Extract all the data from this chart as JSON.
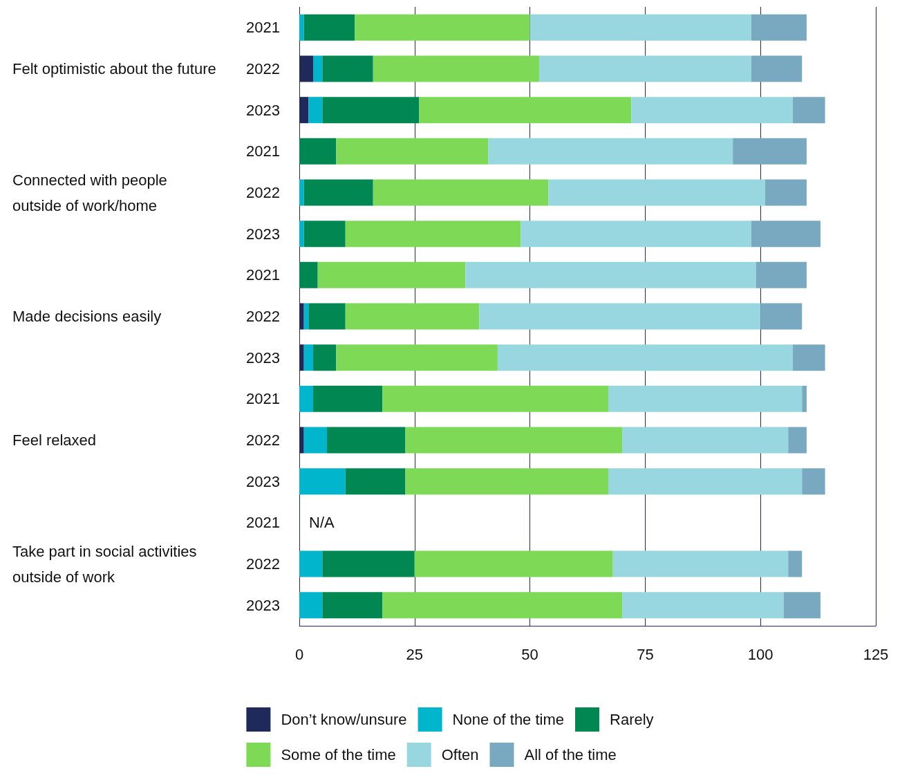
{
  "chart_data": {
    "type": "bar",
    "orientation": "horizontal",
    "stacked": true,
    "categories": [
      "2021",
      "2022",
      "2023",
      "2021",
      "2022",
      "2023",
      "2021",
      "2022",
      "2023",
      "2021",
      "2022",
      "2023",
      "2021",
      "2022",
      "2023"
    ],
    "series": [
      {
        "name": "Don’t know/unsure",
        "color": "#1f2a5a",
        "values": [
          0,
          3,
          2,
          0,
          0,
          0,
          0,
          1,
          1,
          0,
          1,
          0,
          null,
          0,
          0
        ]
      },
      {
        "name": "None of the time",
        "color": "#00b5cc",
        "values": [
          1,
          2,
          3,
          0,
          1,
          1,
          0,
          1,
          2,
          3,
          5,
          10,
          null,
          5,
          5
        ]
      },
      {
        "name": "Rarely",
        "color": "#008752",
        "values": [
          11,
          11,
          21,
          8,
          15,
          9,
          4,
          8,
          5,
          15,
          17,
          13,
          null,
          20,
          13
        ]
      },
      {
        "name": "Some of the time",
        "color": "#7ed957",
        "values": [
          38,
          36,
          46,
          33,
          38,
          38,
          32,
          29,
          35,
          49,
          47,
          44,
          null,
          43,
          52
        ]
      },
      {
        "name": "Often",
        "color": "#98d7e0",
        "values": [
          48,
          46,
          35,
          53,
          47,
          50,
          63,
          61,
          64,
          42,
          36,
          42,
          null,
          38,
          35
        ]
      },
      {
        "name": "All of the time",
        "color": "#79a9c0",
        "values": [
          12,
          11,
          7,
          16,
          9,
          15,
          11,
          9,
          7,
          1,
          4,
          5,
          null,
          3,
          8
        ]
      }
    ],
    "xlim": [
      0,
      125
    ],
    "xticks": [
      0,
      25,
      50,
      75,
      100,
      125
    ],
    "grid": "x",
    "legend": "bottom",
    "annotations": [
      "Felt optimistic about the future",
      "Connected with people outside of work/home",
      "Made decisions easily",
      "Feel relaxed",
      "Take part in social activities outside of work",
      "N/A"
    ]
  }
}
